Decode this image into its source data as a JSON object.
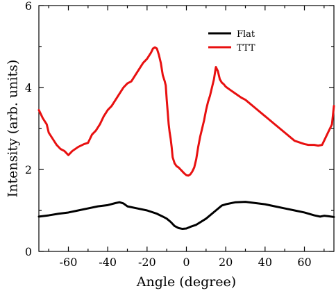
{
  "chart_data": {
    "type": "line",
    "title": "",
    "xlabel": "Angle (degree)",
    "ylabel": "Intensity (arb. units)",
    "xlim": [
      -75,
      75
    ],
    "ylim": [
      0,
      6
    ],
    "xticks": [
      -60,
      -40,
      -20,
      0,
      20,
      40,
      60
    ],
    "yticks": [
      0,
      2,
      4,
      6
    ],
    "legend_position": "top-right",
    "grid": false,
    "series": [
      {
        "name": "Flat",
        "color": "#000000",
        "x": [
          -75,
          -70,
          -65,
          -60,
          -55,
          -50,
          -45,
          -40,
          -36,
          -34,
          -32,
          -30,
          -25,
          -20,
          -15,
          -12,
          -10,
          -8,
          -6,
          -4,
          -2,
          0,
          2,
          5,
          10,
          15,
          18,
          20,
          25,
          30,
          35,
          40,
          45,
          50,
          55,
          60,
          65,
          68,
          70,
          72,
          75
        ],
        "y": [
          0.85,
          0.88,
          0.92,
          0.95,
          1.0,
          1.05,
          1.1,
          1.13,
          1.18,
          1.2,
          1.17,
          1.1,
          1.05,
          1.0,
          0.92,
          0.85,
          0.8,
          0.72,
          0.62,
          0.57,
          0.55,
          0.56,
          0.6,
          0.65,
          0.8,
          1.0,
          1.12,
          1.15,
          1.2,
          1.21,
          1.18,
          1.15,
          1.1,
          1.05,
          1.0,
          0.95,
          0.88,
          0.85,
          0.87,
          0.86,
          0.84
        ]
      },
      {
        "name": "TTT",
        "color": "#e81010",
        "x": [
          -75,
          -73,
          -71,
          -70,
          -68,
          -66,
          -64,
          -62,
          -60,
          -58,
          -55,
          -52,
          -50,
          -48,
          -46,
          -44,
          -42,
          -40,
          -38,
          -36,
          -34,
          -32,
          -30,
          -28,
          -26,
          -24,
          -22,
          -20,
          -18,
          -17,
          -16,
          -15,
          -14,
          -13,
          -12,
          -11,
          -10.5,
          -10,
          -9.5,
          -9,
          -8.5,
          -8,
          -7.5,
          -7,
          -6,
          -5,
          -4,
          -3,
          -2,
          -1,
          0,
          1,
          2,
          3,
          4,
          5,
          6,
          7,
          8,
          9,
          10,
          11,
          12,
          13,
          14,
          15,
          16,
          17,
          18,
          19,
          20,
          22,
          25,
          28,
          30,
          35,
          40,
          45,
          50,
          55,
          60,
          62,
          65,
          67,
          69,
          70,
          72,
          74,
          75
        ],
        "y": [
          3.45,
          3.25,
          3.1,
          2.9,
          2.75,
          2.6,
          2.5,
          2.45,
          2.35,
          2.45,
          2.55,
          2.62,
          2.65,
          2.85,
          2.95,
          3.1,
          3.3,
          3.45,
          3.55,
          3.7,
          3.85,
          4.0,
          4.1,
          4.15,
          4.3,
          4.45,
          4.6,
          4.7,
          4.85,
          4.95,
          4.98,
          4.95,
          4.8,
          4.6,
          4.3,
          4.15,
          4.05,
          3.7,
          3.4,
          3.1,
          2.9,
          2.75,
          2.55,
          2.3,
          2.15,
          2.08,
          2.05,
          2.0,
          1.95,
          1.9,
          1.86,
          1.85,
          1.88,
          1.95,
          2.05,
          2.25,
          2.55,
          2.8,
          3.0,
          3.2,
          3.45,
          3.65,
          3.8,
          4.0,
          4.2,
          4.5,
          4.4,
          4.2,
          4.12,
          4.08,
          4.02,
          3.95,
          3.85,
          3.75,
          3.7,
          3.5,
          3.3,
          3.1,
          2.9,
          2.7,
          2.62,
          2.6,
          2.6,
          2.58,
          2.6,
          2.7,
          2.9,
          3.1,
          3.55
        ]
      }
    ]
  }
}
